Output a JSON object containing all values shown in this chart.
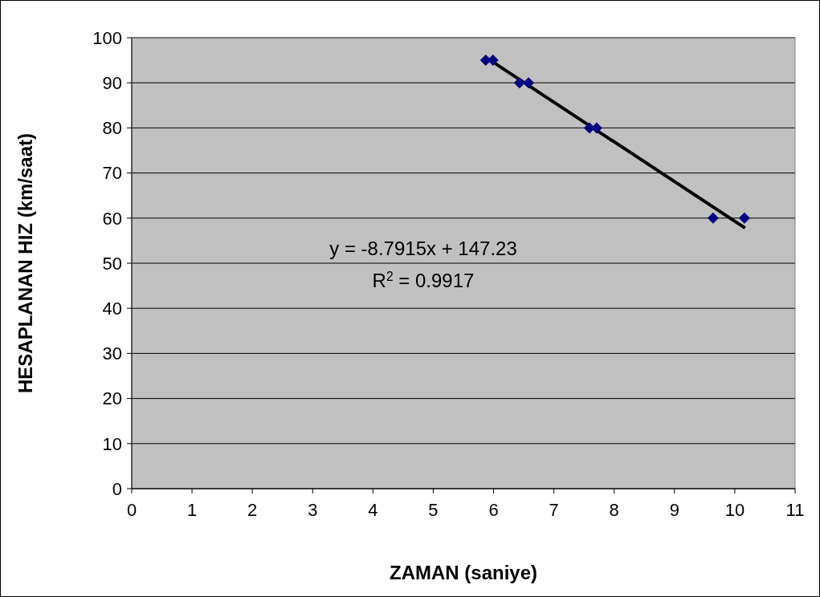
{
  "chart_data": {
    "type": "scatter",
    "xlabel": "ZAMAN (saniye)",
    "ylabel": "HESAPLANAN HIZ (km/saat)",
    "xlim": [
      0,
      11
    ],
    "xticks": [
      0,
      1,
      2,
      3,
      4,
      5,
      6,
      7,
      8,
      9,
      10,
      11
    ],
    "ylim": [
      0,
      100
    ],
    "yticks": [
      0,
      10,
      20,
      30,
      40,
      50,
      60,
      70,
      80,
      90,
      100
    ],
    "grid": "y",
    "series": [
      {
        "color": "#000080",
        "marker": "diamond",
        "x": [
          5.87,
          5.99,
          6.43,
          6.58,
          7.59,
          7.71,
          9.64,
          10.16
        ],
        "values": [
          95,
          95,
          90,
          90,
          80,
          80,
          60,
          60
        ]
      },
      {
        "type": "line",
        "color": "#000000",
        "x": [
          5.9,
          10.17
        ],
        "values": [
          95.4,
          57.8
        ],
        "marker": "none"
      }
    ],
    "annotations": [
      "y = -8.7915x + 147.23",
      "R$^{2}$ = 0.9917"
    ]
  }
}
